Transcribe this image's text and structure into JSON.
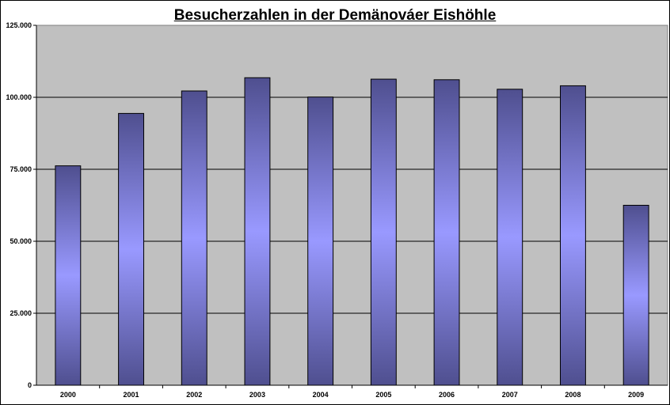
{
  "chart_data": {
    "type": "bar",
    "title": "Besucherzahlen in der Demänováer Eishöhle",
    "xlabel": "",
    "ylabel": "",
    "categories": [
      "2000",
      "2001",
      "2002",
      "2003",
      "2004",
      "2005",
      "2006",
      "2007",
      "2008",
      "2009"
    ],
    "values": [
      76200,
      94400,
      102200,
      106800,
      100100,
      106300,
      106100,
      102800,
      104000,
      62500
    ],
    "ylim": [
      0,
      125000
    ],
    "yticks": [
      0,
      25000,
      50000,
      75000,
      100000,
      125000
    ],
    "ytick_labels": [
      "0",
      "25.000",
      "50.000",
      "75.000",
      "100.000",
      "125.000"
    ],
    "grid": true,
    "legend": "none",
    "colors": {
      "plot_background": "#c0c0c0",
      "bar_dark": "#4f4f8f",
      "bar_light": "#9999ff",
      "gridline": "#000000"
    }
  }
}
